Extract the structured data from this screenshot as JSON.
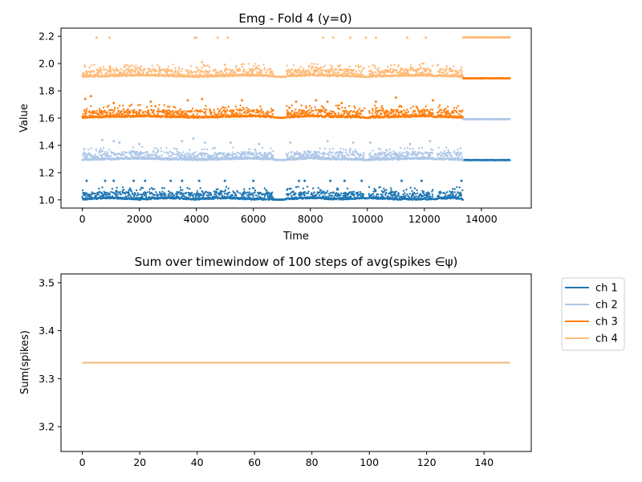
{
  "figure": {
    "background": "#ffffff"
  },
  "chart_data": [
    {
      "type": "scatter",
      "title": "Emg - Fold 4 (y=0)",
      "xlabel": "Time",
      "ylabel": "Value",
      "xlim": [
        -750,
        15750
      ],
      "ylim": [
        0.94,
        2.26
      ],
      "xticks": [
        0,
        2000,
        4000,
        6000,
        8000,
        10000,
        12000,
        14000
      ],
      "xtick_labels": [
        "0",
        "2000",
        "4000",
        "6000",
        "8000",
        "10000",
        "12000",
        "14000"
      ],
      "yticks": [
        1.0,
        1.2,
        1.4,
        1.6,
        1.8,
        2.0,
        2.2
      ],
      "ytick_labels": [
        "1.0",
        "1.2",
        "1.4",
        "1.6",
        "1.8",
        "2.0",
        "2.2"
      ],
      "grid": false,
      "series": [
        {
          "color": "#1f77b4",
          "baseline": 1.0,
          "points": [
            [
              0,
              1.0
            ],
            [
              1000,
              1.01
            ],
            [
              2000,
              1.0
            ],
            [
              3000,
              1.01
            ],
            [
              4000,
              1.0
            ],
            [
              5000,
              1.01
            ],
            [
              6000,
              1.0
            ],
            [
              7000,
              1.0
            ],
            [
              8000,
              1.01
            ],
            [
              9000,
              1.0
            ],
            [
              10000,
              1.01
            ],
            [
              11000,
              1.0
            ],
            [
              12000,
              1.0
            ],
            [
              13000,
              1.01
            ],
            [
              13350,
              1.0
            ],
            [
              13350,
              1.29
            ],
            [
              14000,
              1.29
            ],
            [
              15000,
              1.29
            ]
          ],
          "outliers": [
            [
              150,
              1.14
            ],
            [
              800,
              1.14
            ],
            [
              1100,
              1.14
            ],
            [
              1800,
              1.14
            ],
            [
              2200,
              1.14
            ],
            [
              3100,
              1.14
            ],
            [
              3500,
              1.14
            ],
            [
              4100,
              1.14
            ],
            [
              5000,
              1.14
            ],
            [
              6000,
              1.14
            ],
            [
              7600,
              1.14
            ],
            [
              7800,
              1.14
            ],
            [
              8700,
              1.14
            ],
            [
              9200,
              1.14
            ],
            [
              9800,
              1.14
            ],
            [
              11200,
              1.14
            ],
            [
              11900,
              1.14
            ],
            [
              13300,
              1.14
            ]
          ]
        },
        {
          "color": "#aec7e8",
          "baseline": 1.29,
          "points": [
            [
              0,
              1.29
            ],
            [
              2000,
              1.3
            ],
            [
              4000,
              1.29
            ],
            [
              6000,
              1.3
            ],
            [
              7000,
              1.29
            ],
            [
              8000,
              1.3
            ],
            [
              10000,
              1.29
            ],
            [
              12000,
              1.3
            ],
            [
              13350,
              1.29
            ],
            [
              13350,
              1.59
            ],
            [
              14000,
              1.59
            ],
            [
              15000,
              1.59
            ]
          ],
          "outliers": [
            [
              700,
              1.44
            ],
            [
              1100,
              1.43
            ],
            [
              1300,
              1.42
            ],
            [
              2000,
              1.41
            ],
            [
              3500,
              1.43
            ],
            [
              3900,
              1.45
            ],
            [
              4300,
              1.42
            ],
            [
              5200,
              1.42
            ],
            [
              6200,
              1.41
            ],
            [
              7300,
              1.42
            ],
            [
              8600,
              1.43
            ],
            [
              9500,
              1.42
            ],
            [
              10100,
              1.42
            ],
            [
              11500,
              1.41
            ],
            [
              12200,
              1.43
            ]
          ]
        },
        {
          "color": "#ff7f0e",
          "baseline": 1.6,
          "points": [
            [
              0,
              1.6
            ],
            [
              2000,
              1.61
            ],
            [
              4000,
              1.6
            ],
            [
              6000,
              1.61
            ],
            [
              7000,
              1.6
            ],
            [
              8000,
              1.61
            ],
            [
              10000,
              1.6
            ],
            [
              12000,
              1.61
            ],
            [
              13350,
              1.6
            ],
            [
              13350,
              1.89
            ],
            [
              14000,
              1.89
            ],
            [
              15000,
              1.89
            ]
          ],
          "outliers": [
            [
              100,
              1.74
            ],
            [
              300,
              1.76
            ],
            [
              1100,
              1.71
            ],
            [
              2400,
              1.72
            ],
            [
              3700,
              1.73
            ],
            [
              4200,
              1.74
            ],
            [
              5600,
              1.73
            ],
            [
              7500,
              1.72
            ],
            [
              8200,
              1.73
            ],
            [
              8600,
              1.72
            ],
            [
              9100,
              1.71
            ],
            [
              10300,
              1.72
            ],
            [
              11000,
              1.75
            ],
            [
              12300,
              1.73
            ]
          ]
        },
        {
          "color": "#ffbb78",
          "baseline": 1.9,
          "points": [
            [
              0,
              1.9
            ],
            [
              2000,
              1.91
            ],
            [
              4000,
              1.9
            ],
            [
              6000,
              1.91
            ],
            [
              7000,
              1.9
            ],
            [
              8000,
              1.91
            ],
            [
              10000,
              1.9
            ],
            [
              12000,
              1.91
            ],
            [
              13350,
              1.9
            ],
            [
              13350,
              2.19
            ],
            [
              14000,
              2.19
            ],
            [
              15000,
              2.19
            ]
          ],
          "outliers": [
            [
              500,
              2.19
            ],
            [
              950,
              2.19
            ],
            [
              3950,
              2.19
            ],
            [
              4000,
              2.19
            ],
            [
              4750,
              2.19
            ],
            [
              5100,
              2.19
            ],
            [
              8450,
              2.19
            ],
            [
              8800,
              2.19
            ],
            [
              9400,
              2.19
            ],
            [
              9950,
              2.19
            ],
            [
              10300,
              2.19
            ],
            [
              11400,
              2.19
            ],
            [
              12050,
              2.19
            ],
            [
              4200,
              2.01
            ],
            [
              5000,
              1.99
            ],
            [
              5400,
              1.98
            ],
            [
              9000,
              1.98
            ]
          ]
        }
      ]
    },
    {
      "type": "line",
      "title": "Sum over timewindow of 100 steps of avg(spikes ∈ψ)",
      "xlabel": "",
      "ylabel": "Sum(spikes)",
      "xlim": [
        -7.45,
        156.45
      ],
      "ylim": [
        3.1483,
        3.5183
      ],
      "xticks": [
        0,
        20,
        40,
        60,
        80,
        100,
        120,
        140
      ],
      "xtick_labels": [
        "0",
        "20",
        "40",
        "60",
        "80",
        "100",
        "120",
        "140"
      ],
      "yticks": [
        3.2,
        3.3,
        3.4,
        3.5
      ],
      "ytick_labels": [
        "3.2",
        "3.3",
        "3.4",
        "3.5"
      ],
      "grid": false,
      "legend_position": "outside-right",
      "series": [
        {
          "name": "ch 1",
          "color": "#1f77b4",
          "x": [
            0,
            149
          ],
          "y": [
            3.3333,
            3.3333
          ]
        },
        {
          "name": "ch 2",
          "color": "#aec7e8",
          "x": [
            0,
            149
          ],
          "y": [
            3.3333,
            3.3333
          ]
        },
        {
          "name": "ch 3",
          "color": "#ff7f0e",
          "x": [
            0,
            149
          ],
          "y": [
            3.3333,
            3.3333
          ]
        },
        {
          "name": "ch 4",
          "color": "#ffbb78",
          "x": [
            0,
            149
          ],
          "y": [
            3.3333,
            3.3333
          ]
        }
      ]
    }
  ]
}
